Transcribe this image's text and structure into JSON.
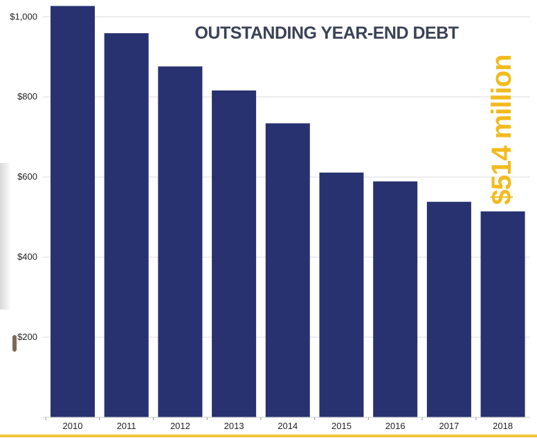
{
  "chart_data": {
    "type": "bar",
    "title": "OUTSTANDING YEAR-END DEBT",
    "categories": [
      "2010",
      "2011",
      "2012",
      "2013",
      "2014",
      "2015",
      "2016",
      "2017",
      "2018"
    ],
    "values": [
      1027,
      959,
      876,
      816,
      734,
      611,
      589,
      538,
      514
    ],
    "y_ticks": [
      "$200",
      "$400",
      "$600",
      "$800",
      "$1,000"
    ],
    "y_tick_values": [
      200,
      400,
      600,
      800,
      1000
    ],
    "ylim": [
      0,
      1035
    ],
    "grid": true,
    "bar_color": "#283270",
    "callout": {
      "text": "$514 million",
      "color": "#f2bb1d"
    }
  }
}
